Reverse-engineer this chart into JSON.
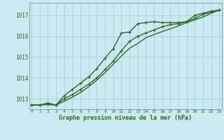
{
  "line1_marked": [
    1012.7,
    1012.7,
    1012.8,
    1012.7,
    1013.15,
    1013.45,
    1013.75,
    1014.05,
    1014.45,
    1014.95,
    1015.4,
    1016.15,
    1016.2,
    1016.6,
    1016.65,
    1016.7,
    1016.65,
    1016.65,
    1016.65,
    1016.7,
    1017.0,
    1017.1,
    1017.2,
    1017.25
  ],
  "line2_marked": [
    1012.7,
    1012.7,
    1012.75,
    1012.7,
    1013.0,
    1013.2,
    1013.45,
    1013.7,
    1014.0,
    1014.4,
    1014.8,
    1015.3,
    1015.75,
    1016.0,
    1016.15,
    1016.3,
    1016.45,
    1016.55,
    1016.6,
    1016.7,
    1016.85,
    1017.05,
    1017.15,
    1017.25
  ],
  "line3_smooth": [
    1012.7,
    1012.7,
    1012.72,
    1012.7,
    1012.88,
    1013.08,
    1013.3,
    1013.58,
    1013.9,
    1014.25,
    1014.65,
    1015.05,
    1015.42,
    1015.65,
    1015.92,
    1016.08,
    1016.22,
    1016.35,
    1016.5,
    1016.65,
    1016.78,
    1016.92,
    1017.1,
    1017.25
  ],
  "x": [
    0,
    1,
    2,
    3,
    4,
    5,
    6,
    7,
    8,
    9,
    10,
    11,
    12,
    13,
    14,
    15,
    16,
    17,
    18,
    19,
    20,
    21,
    22,
    23
  ],
  "ylim": [
    1012.5,
    1017.6
  ],
  "yticks": [
    1013,
    1014,
    1015,
    1016,
    1017
  ],
  "xtick_labels": [
    "0",
    "1",
    "2",
    "3",
    "4",
    "5",
    "6",
    "7",
    "8",
    "9",
    "10",
    "11",
    "12",
    "13",
    "14",
    "15",
    "16",
    "17",
    "18",
    "19",
    "20",
    "21",
    "22",
    "23"
  ],
  "xlabel": "Graphe pression niveau de la mer (hPa)",
  "line_color": "#2d6a2d",
  "bg_color": "#cce8f0",
  "grid_color": "#a8c8d8",
  "marker": "+",
  "marker_size": 3.5,
  "line_width": 1.0
}
